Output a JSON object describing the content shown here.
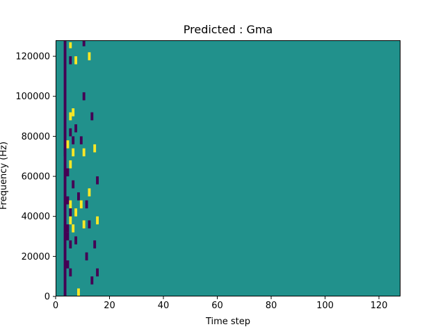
{
  "chart_data": {
    "type": "heatmap",
    "title": "Predicted : Gma",
    "xlabel": "Time step",
    "ylabel": "Frequency (Hz)",
    "xlim": [
      0,
      128
    ],
    "ylim": [
      0,
      128000
    ],
    "x_ticks": [
      0,
      20,
      40,
      60,
      80,
      100,
      120
    ],
    "x_tick_labels": [
      "0",
      "20",
      "40",
      "60",
      "80",
      "100",
      "120"
    ],
    "y_ticks": [
      0,
      20000,
      40000,
      60000,
      80000,
      100000,
      120000
    ],
    "y_tick_labels": [
      "0",
      "20000",
      "40000",
      "60000",
      "80000",
      "100000",
      "120000"
    ],
    "levels": [
      -1,
      0,
      1
    ],
    "colormap": [
      "#440154",
      "#21918c",
      "#fde725"
    ],
    "background_level": 0,
    "bin_height_hz": 1000,
    "cells": [
      {
        "t": 3,
        "f0": 0,
        "f1": 128000,
        "v": -1
      },
      {
        "t": 3,
        "f0": 70000,
        "f1": 74000,
        "v": -1
      },
      {
        "t": 4,
        "f0": 74000,
        "f1": 78000,
        "v": 1
      },
      {
        "t": 4,
        "f0": 60000,
        "f1": 64000,
        "v": -1
      },
      {
        "t": 4,
        "f0": 46000,
        "f1": 50000,
        "v": -1
      },
      {
        "t": 4,
        "f0": 32000,
        "f1": 36000,
        "v": -1
      },
      {
        "t": 4,
        "f0": 28000,
        "f1": 32000,
        "v": -1
      },
      {
        "t": 4,
        "f0": 14000,
        "f1": 18000,
        "v": -1
      },
      {
        "t": 5,
        "f0": 124000,
        "f1": 127000,
        "v": 1
      },
      {
        "t": 5,
        "f0": 116000,
        "f1": 120000,
        "v": -1
      },
      {
        "t": 5,
        "f0": 88000,
        "f1": 92000,
        "v": 1
      },
      {
        "t": 5,
        "f0": 80000,
        "f1": 84000,
        "v": -1
      },
      {
        "t": 5,
        "f0": 64000,
        "f1": 68000,
        "v": 1
      },
      {
        "t": 5,
        "f0": 44000,
        "f1": 48000,
        "v": 1
      },
      {
        "t": 5,
        "f0": 40000,
        "f1": 44000,
        "v": -1
      },
      {
        "t": 5,
        "f0": 36000,
        "f1": 40000,
        "v": 1
      },
      {
        "t": 5,
        "f0": 24000,
        "f1": 28000,
        "v": -1
      },
      {
        "t": 5,
        "f0": 10000,
        "f1": 14000,
        "v": -1
      },
      {
        "t": 6,
        "f0": 90000,
        "f1": 94000,
        "v": 1
      },
      {
        "t": 6,
        "f0": 76000,
        "f1": 80000,
        "v": -1
      },
      {
        "t": 6,
        "f0": 70000,
        "f1": 74000,
        "v": 1
      },
      {
        "t": 6,
        "f0": 54000,
        "f1": 58000,
        "v": -1
      },
      {
        "t": 6,
        "f0": 32000,
        "f1": 36000,
        "v": 1
      },
      {
        "t": 7,
        "f0": 116000,
        "f1": 120000,
        "v": 1
      },
      {
        "t": 7,
        "f0": 82000,
        "f1": 86000,
        "v": -1
      },
      {
        "t": 7,
        "f0": 40000,
        "f1": 44000,
        "v": 1
      },
      {
        "t": 7,
        "f0": 26000,
        "f1": 30000,
        "v": -1
      },
      {
        "t": 8,
        "f0": 48000,
        "f1": 52000,
        "v": -1
      },
      {
        "t": 8,
        "f0": 0,
        "f1": 4000,
        "v": 1
      },
      {
        "t": 9,
        "f0": 76000,
        "f1": 80000,
        "v": -1
      },
      {
        "t": 9,
        "f0": 44000,
        "f1": 48000,
        "v": 1
      },
      {
        "t": 10,
        "f0": 128000,
        "f1": 125000,
        "v": -1
      },
      {
        "t": 10,
        "f0": 98000,
        "f1": 102000,
        "v": -1
      },
      {
        "t": 10,
        "f0": 70000,
        "f1": 74000,
        "v": 1
      },
      {
        "t": 10,
        "f0": 34000,
        "f1": 38000,
        "v": 1
      },
      {
        "t": 11,
        "f0": 44000,
        "f1": 48000,
        "v": -1
      },
      {
        "t": 11,
        "f0": 18000,
        "f1": 22000,
        "v": -1
      },
      {
        "t": 12,
        "f0": 118000,
        "f1": 122000,
        "v": 1
      },
      {
        "t": 12,
        "f0": 50000,
        "f1": 54000,
        "v": 1
      },
      {
        "t": 12,
        "f0": 34000,
        "f1": 38000,
        "v": -1
      },
      {
        "t": 13,
        "f0": 88000,
        "f1": 92000,
        "v": -1
      },
      {
        "t": 13,
        "f0": 6000,
        "f1": 10000,
        "v": -1
      },
      {
        "t": 14,
        "f0": 72000,
        "f1": 76000,
        "v": 1
      },
      {
        "t": 14,
        "f0": 24000,
        "f1": 28000,
        "v": -1
      },
      {
        "t": 15,
        "f0": 56000,
        "f1": 60000,
        "v": -1
      },
      {
        "t": 15,
        "f0": 36000,
        "f1": 40000,
        "v": 1
      },
      {
        "t": 15,
        "f0": 10000,
        "f1": 14000,
        "v": -1
      }
    ]
  }
}
